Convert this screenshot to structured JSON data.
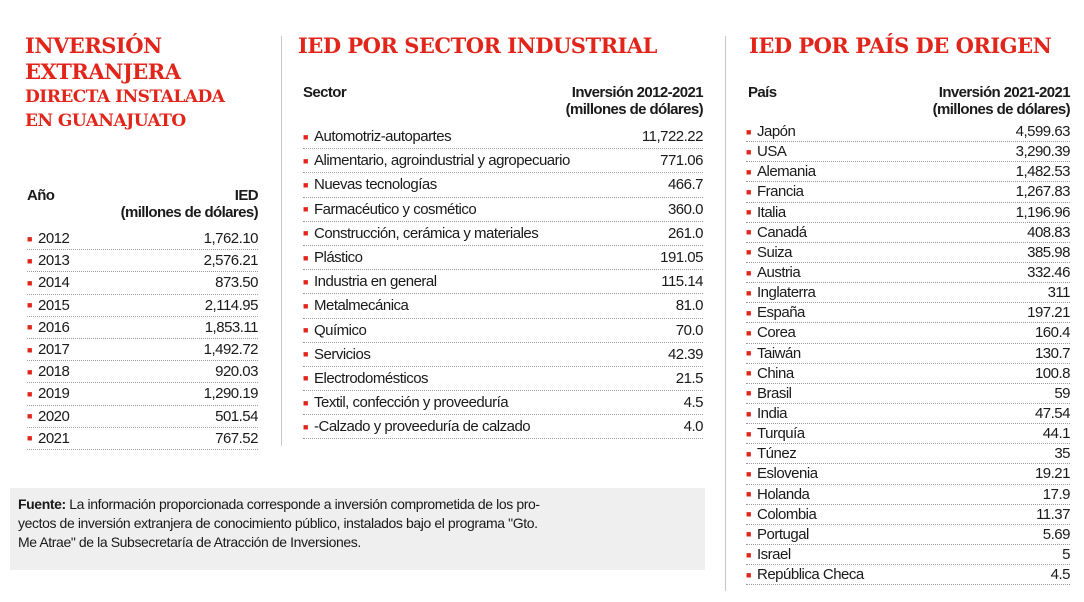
{
  "col1": {
    "title_line1": "INVERSIÓN",
    "title_line2": "EXTRANJERA",
    "title_line3": "DIRECTA INSTALADA",
    "title_line4": "EN GUANAJUATO",
    "header_left": "Año",
    "header_right_1": "IED",
    "header_right_2": "(millones de dólares)",
    "rows": [
      {
        "label": "2012",
        "value": "1,762.10"
      },
      {
        "label": "2013",
        "value": "2,576.21"
      },
      {
        "label": "2014",
        "value": "873.50"
      },
      {
        "label": "2015",
        "value": "2,114.95"
      },
      {
        "label": "2016",
        "value": "1,853.11"
      },
      {
        "label": "2017",
        "value": "1,492.72"
      },
      {
        "label": "2018",
        "value": "920.03"
      },
      {
        "label": "2019",
        "value": "1,290.19"
      },
      {
        "label": "2020",
        "value": "501.54"
      },
      {
        "label": "2021",
        "value": "767.52"
      }
    ]
  },
  "col2": {
    "title": "IED POR SECTOR INDUSTRIAL",
    "header_left": "Sector",
    "header_right_1": "Inversión 2012-2021",
    "header_right_2": "(millones de dólares)",
    "rows": [
      {
        "label": "Automotriz-autopartes",
        "value": "11,722.22"
      },
      {
        "label": "Alimentario, agroindustrial y agropecuario",
        "value": "771.06"
      },
      {
        "label": "Nuevas tecnologías",
        "value": "466.7"
      },
      {
        "label": "Farmacéutico y cosmético",
        "value": "360.0"
      },
      {
        "label": "Construcción, cerámica y materiales",
        "value": "261.0"
      },
      {
        "label": "Plástico",
        "value": "191.05"
      },
      {
        "label": "Industria en general",
        "value": "115.14"
      },
      {
        "label": "Metalmecánica",
        "value": "81.0"
      },
      {
        "label": "Químico",
        "value": "70.0"
      },
      {
        "label": "Servicios",
        "value": "42.39"
      },
      {
        "label": "Electrodomésticos",
        "value": "21.5"
      },
      {
        "label": "Textil, confección y proveeduría",
        "value": "4.5"
      },
      {
        "label": "-Calzado y proveeduría de calzado",
        "value": "4.0"
      }
    ]
  },
  "col3": {
    "title": "IED POR PAÍS DE ORIGEN",
    "header_left": "País",
    "header_right_1": "Inversión 2021-2021",
    "header_right_2": "(millones de dólares)",
    "rows": [
      {
        "label": "Japón",
        "value": "4,599.63"
      },
      {
        "label": "USA",
        "value": "3,290.39"
      },
      {
        "label": "Alemania",
        "value": "1,482.53"
      },
      {
        "label": "Francia",
        "value": "1,267.83"
      },
      {
        "label": "Italia",
        "value": "1,196.96"
      },
      {
        "label": "Canadá",
        "value": "408.83"
      },
      {
        "label": "Suiza",
        "value": "385.98"
      },
      {
        "label": "Austria",
        "value": "332.46"
      },
      {
        "label": "Inglaterra",
        "value": "311"
      },
      {
        "label": "España",
        "value": "197.21"
      },
      {
        "label": "Corea",
        "value": "160.4"
      },
      {
        "label": "Taiwán",
        "value": "130.7"
      },
      {
        "label": "China",
        "value": "100.8"
      },
      {
        "label": "Brasil",
        "value": "59"
      },
      {
        "label": "India",
        "value": "47.54"
      },
      {
        "label": "Turquía",
        "value": "44.1"
      },
      {
        "label": "Túnez",
        "value": "35"
      },
      {
        "label": "Eslovenia",
        "value": "19.21"
      },
      {
        "label": "Holanda",
        "value": "17.9"
      },
      {
        "label": "Colombia",
        "value": "11.37"
      },
      {
        "label": "Portugal",
        "value": "5.69"
      },
      {
        "label": "Israel",
        "value": "5"
      },
      {
        "label": "República Checa",
        "value": "4.5"
      }
    ]
  },
  "note": {
    "label": "Fuente:",
    "text_line1": " La información proporcionada corresponde a inversión comprometida de los pro-",
    "text_line2": "yectos de inversión extranjera de conocimiento público, instalados bajo el programa \"Gto.",
    "text_line3": "Me Atrae\" de la Subsecretaría de Atracción de Inversiones."
  },
  "colors": {
    "accent": "#e1251b",
    "note_bg": "#efefef"
  }
}
